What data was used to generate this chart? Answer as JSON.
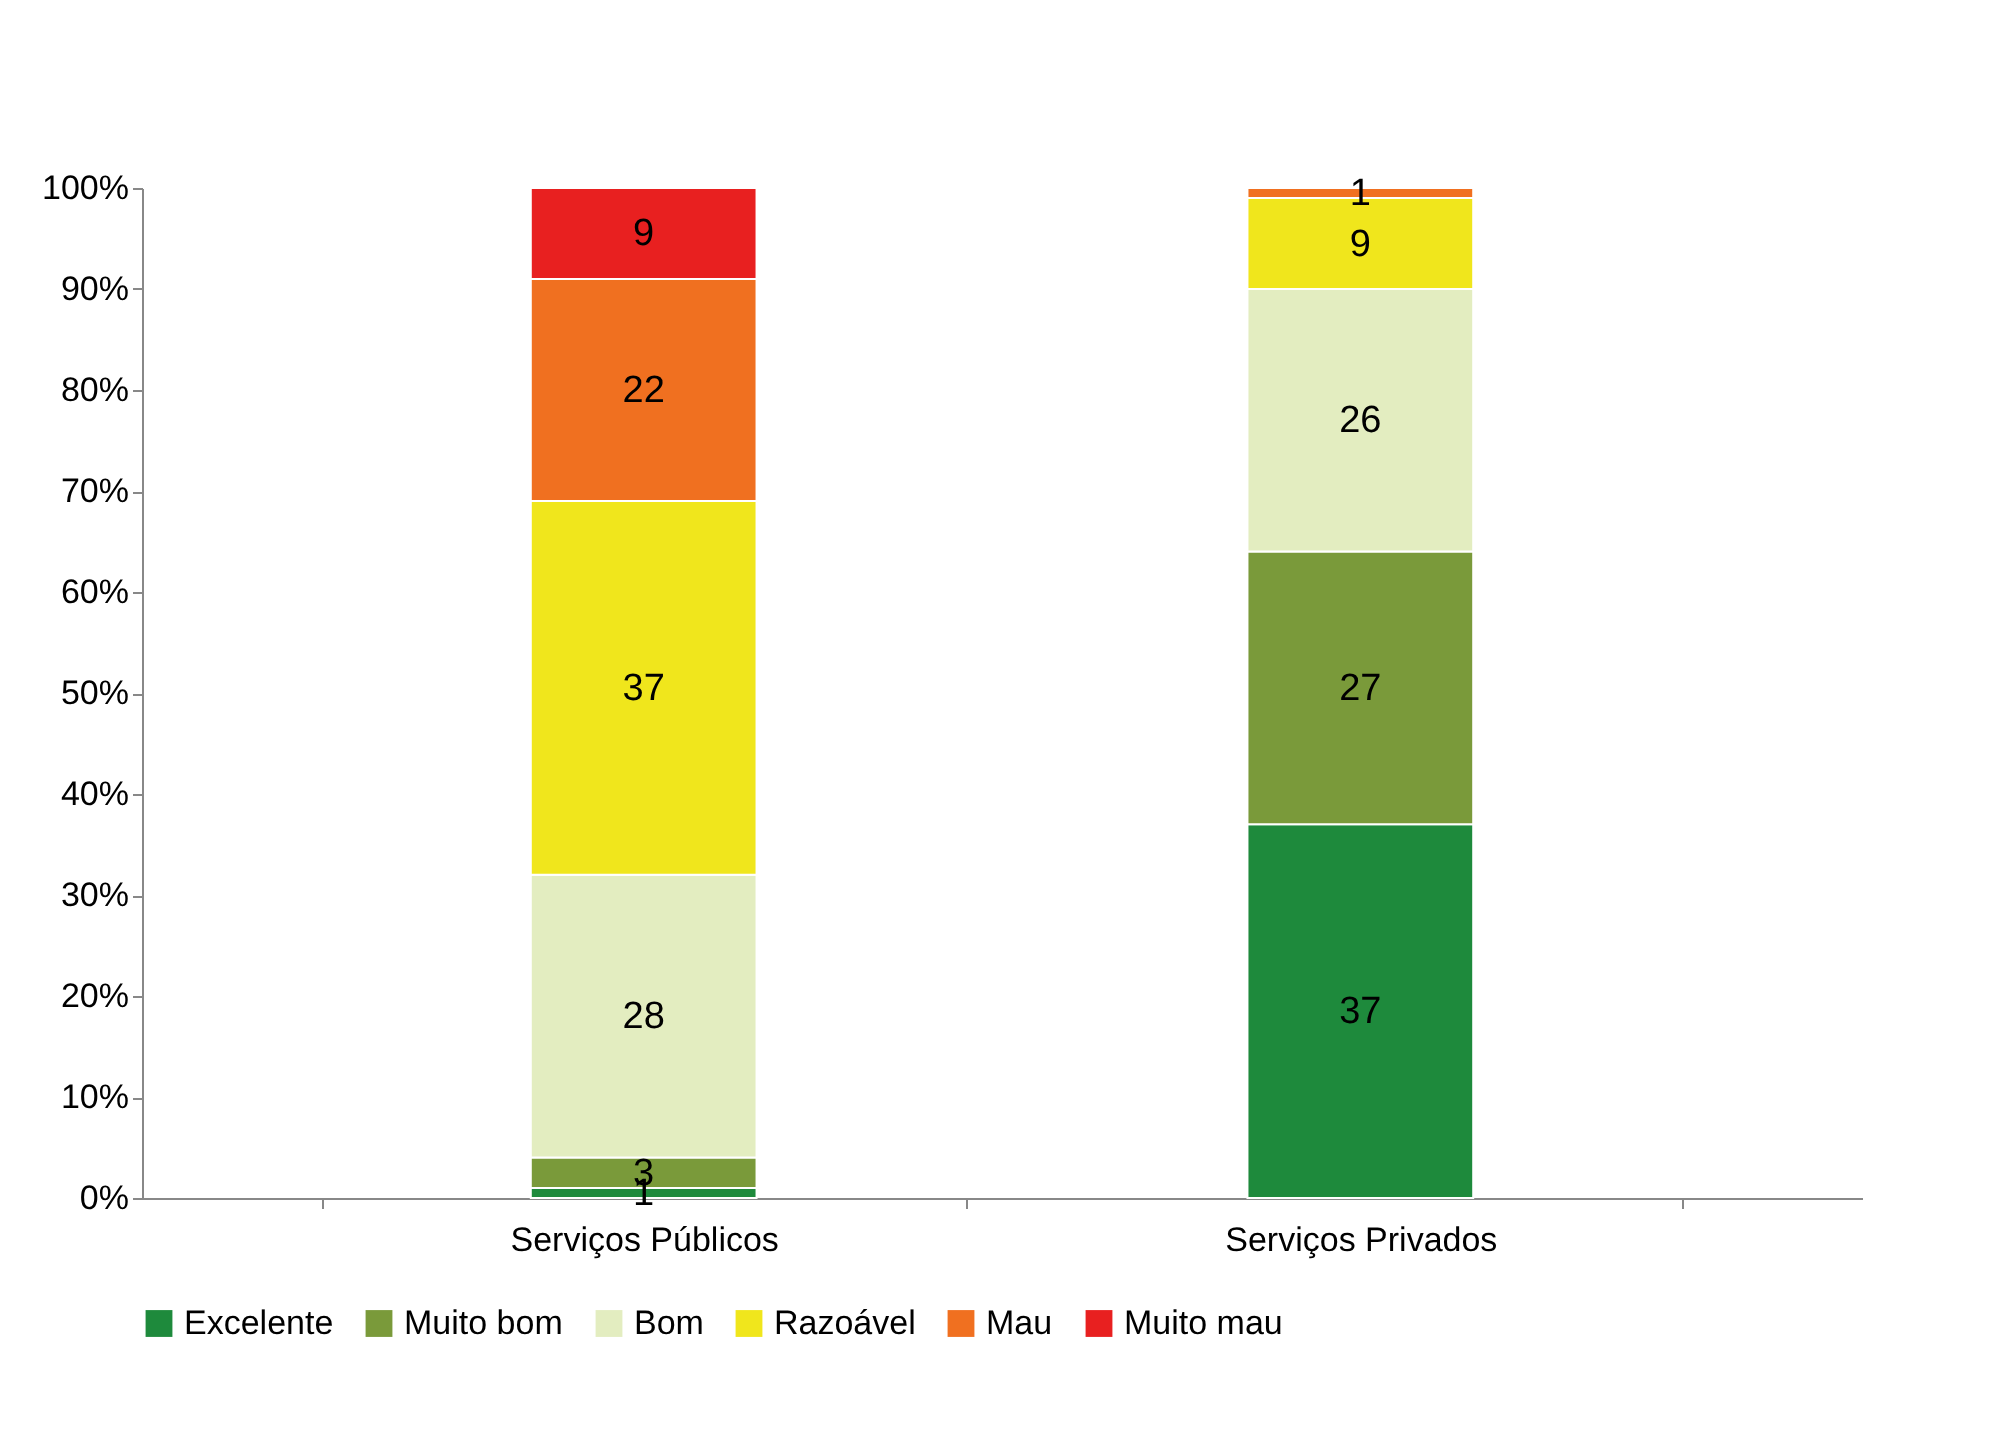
{
  "chart_data": {
    "type": "bar",
    "stacked": true,
    "categories": [
      "Serviços Públicos",
      "Serviços Privados"
    ],
    "series": [
      {
        "name": "Excelente",
        "color": "#1e8a3c",
        "values": [
          1,
          37
        ]
      },
      {
        "name": "Muito bom",
        "color": "#7a9a3a",
        "values": [
          3,
          27
        ]
      },
      {
        "name": "Bom",
        "color": "#e3edc0",
        "values": [
          28,
          26
        ]
      },
      {
        "name": "Razoável",
        "color": "#f0e61c",
        "values": [
          37,
          9
        ]
      },
      {
        "name": "Mau",
        "color": "#f07020",
        "values": [
          22,
          1
        ]
      },
      {
        "name": "Muito mau",
        "color": "#e82020",
        "values": [
          9,
          null
        ]
      }
    ],
    "ylim": [
      0,
      100
    ],
    "yticks": [
      {
        "value": 0,
        "label": "0%"
      },
      {
        "value": 10,
        "label": "10%"
      },
      {
        "value": 20,
        "label": "20%"
      },
      {
        "value": 30,
        "label": "30%"
      },
      {
        "value": 40,
        "label": "40%"
      },
      {
        "value": 50,
        "label": "50%"
      },
      {
        "value": 60,
        "label": "60%"
      },
      {
        "value": 70,
        "label": "70%"
      },
      {
        "value": 80,
        "label": "80%"
      },
      {
        "value": 90,
        "label": "90%"
      },
      {
        "value": 100,
        "label": "100%"
      }
    ],
    "data_labels": true,
    "legend": "bottom",
    "grid": false
  }
}
